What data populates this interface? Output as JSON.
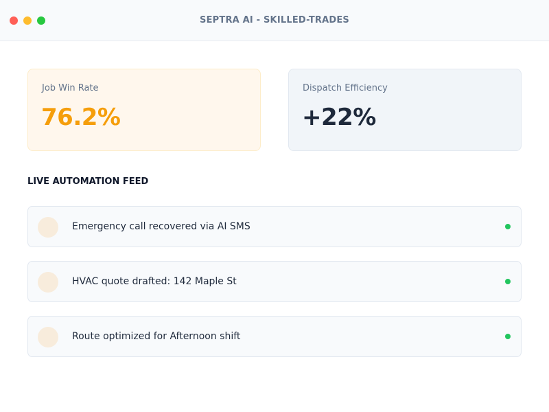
{
  "window": {
    "title": "SEPTRA AI - SKILLED-TRADES",
    "controls": {
      "close_color": "#ff5f57",
      "minimize_color": "#febc2e",
      "maximize_color": "#28c840"
    }
  },
  "stats": [
    {
      "label": "Job Win Rate",
      "value": "76.2%",
      "value_color": "#f59e0b",
      "background": "#fff7ed",
      "border": "#fdecc8"
    },
    {
      "label": "Dispatch Efficiency",
      "value": "+22%",
      "value_color": "#1e293b",
      "background": "#f1f5f9",
      "border": "#e2e8f0"
    }
  ],
  "feed": {
    "heading": "LIVE AUTOMATION FEED",
    "avatar_color": "#f8ecdc",
    "status_color": "#22c55e",
    "items": [
      {
        "text": "Emergency call recovered via AI SMS",
        "status": "active"
      },
      {
        "text": "HVAC quote drafted: 142 Maple St",
        "status": "active"
      },
      {
        "text": "Route optimized for Afternoon shift",
        "status": "active"
      }
    ]
  }
}
